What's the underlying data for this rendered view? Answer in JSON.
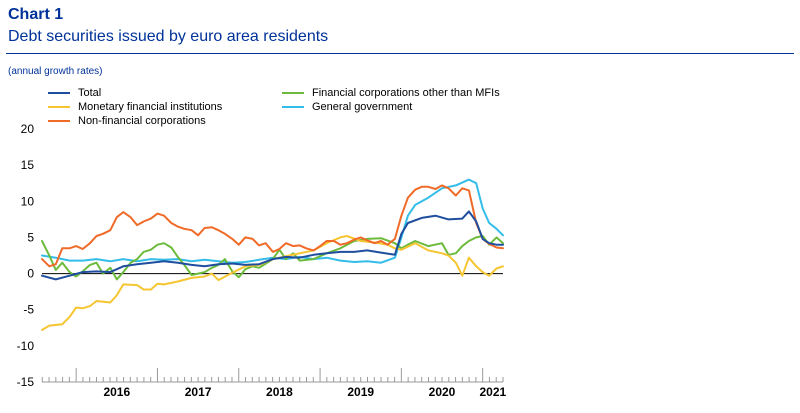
{
  "header": {
    "chart_number": "Chart 1",
    "title": "Debt securities issued by euro area residents",
    "subtitle": "(annual growth rates)"
  },
  "colors": {
    "Total": "#1f4e9e",
    "Monetary financial institutions": "#f6c532",
    "Non-financial corporations": "#f06a28",
    "Financial corporations other than MFIs": "#6dbb3d",
    "General government": "#33bde8"
  },
  "chart_data": {
    "type": "line",
    "x_labels": [
      "2016",
      "2017",
      "2018",
      "2019",
      "2020",
      "2021"
    ],
    "x_start": 2015.58,
    "x_end": 2021.25,
    "ylim": [
      -15,
      20
    ],
    "yticks": [
      20,
      15,
      10,
      5,
      0,
      -5,
      -10,
      -15
    ],
    "legend_position": "top",
    "series": [
      {
        "name": "Total",
        "points": [
          [
            2015.58,
            -0.3
          ],
          [
            2015.75,
            -0.8
          ],
          [
            2015.92,
            -0.3
          ],
          [
            2016.08,
            0.2
          ],
          [
            2016.25,
            0.3
          ],
          [
            2016.42,
            0.2
          ],
          [
            2016.58,
            1.0
          ],
          [
            2016.75,
            1.3
          ],
          [
            2016.92,
            1.5
          ],
          [
            2017.08,
            1.7
          ],
          [
            2017.25,
            1.5
          ],
          [
            2017.42,
            1.2
          ],
          [
            2017.58,
            1.0
          ],
          [
            2017.75,
            1.3
          ],
          [
            2017.92,
            1.4
          ],
          [
            2018.08,
            1.2
          ],
          [
            2018.25,
            1.3
          ],
          [
            2018.42,
            2.0
          ],
          [
            2018.58,
            2.3
          ],
          [
            2018.75,
            2.2
          ],
          [
            2018.92,
            2.6
          ],
          [
            2019.08,
            2.8
          ],
          [
            2019.25,
            3.0
          ],
          [
            2019.42,
            3.0
          ],
          [
            2019.58,
            3.2
          ],
          [
            2019.75,
            2.9
          ],
          [
            2019.92,
            2.6
          ],
          [
            2020.0,
            5.5
          ],
          [
            2020.08,
            7.0
          ],
          [
            2020.25,
            7.7
          ],
          [
            2020.42,
            8.0
          ],
          [
            2020.58,
            7.5
          ],
          [
            2020.75,
            7.6
          ],
          [
            2020.83,
            8.6
          ],
          [
            2020.92,
            7.2
          ],
          [
            2021.0,
            4.8
          ],
          [
            2021.08,
            4.2
          ],
          [
            2021.17,
            4.0
          ],
          [
            2021.25,
            4.0
          ]
        ]
      },
      {
        "name": "Monetary financial institutions",
        "points": [
          [
            2015.58,
            -7.8
          ],
          [
            2015.67,
            -7.2
          ],
          [
            2015.83,
            -7.0
          ],
          [
            2015.92,
            -6.0
          ],
          [
            2016.0,
            -4.7
          ],
          [
            2016.08,
            -4.8
          ],
          [
            2016.17,
            -4.5
          ],
          [
            2016.25,
            -3.8
          ],
          [
            2016.42,
            -4.0
          ],
          [
            2016.5,
            -3.0
          ],
          [
            2016.58,
            -1.5
          ],
          [
            2016.75,
            -1.6
          ],
          [
            2016.83,
            -2.2
          ],
          [
            2016.92,
            -2.2
          ],
          [
            2017.0,
            -1.4
          ],
          [
            2017.08,
            -1.5
          ],
          [
            2017.25,
            -1.1
          ],
          [
            2017.42,
            -0.6
          ],
          [
            2017.58,
            -0.4
          ],
          [
            2017.67,
            0.0
          ],
          [
            2017.75,
            -0.9
          ],
          [
            2017.92,
            0.1
          ],
          [
            2018.08,
            1.0
          ],
          [
            2018.25,
            1.2
          ],
          [
            2018.42,
            2.0
          ],
          [
            2018.58,
            2.4
          ],
          [
            2018.75,
            2.8
          ],
          [
            2018.92,
            3.2
          ],
          [
            2019.08,
            4.2
          ],
          [
            2019.25,
            5.0
          ],
          [
            2019.33,
            5.2
          ],
          [
            2019.5,
            4.5
          ],
          [
            2019.67,
            4.3
          ],
          [
            2019.83,
            4.0
          ],
          [
            2019.92,
            3.5
          ],
          [
            2020.0,
            3.3
          ],
          [
            2020.17,
            4.2
          ],
          [
            2020.33,
            3.2
          ],
          [
            2020.5,
            2.8
          ],
          [
            2020.58,
            2.5
          ],
          [
            2020.67,
            1.5
          ],
          [
            2020.75,
            -0.3
          ],
          [
            2020.83,
            2.2
          ],
          [
            2020.92,
            1.0
          ],
          [
            2021.0,
            0.2
          ],
          [
            2021.08,
            -0.3
          ],
          [
            2021.17,
            0.7
          ],
          [
            2021.25,
            1.0
          ]
        ]
      },
      {
        "name": "Non-financial corporations",
        "points": [
          [
            2015.58,
            2.0
          ],
          [
            2015.67,
            1.0
          ],
          [
            2015.75,
            1.3
          ],
          [
            2015.83,
            3.5
          ],
          [
            2015.92,
            3.5
          ],
          [
            2016.0,
            3.8
          ],
          [
            2016.08,
            3.4
          ],
          [
            2016.17,
            4.2
          ],
          [
            2016.25,
            5.2
          ],
          [
            2016.33,
            5.5
          ],
          [
            2016.42,
            6.0
          ],
          [
            2016.5,
            7.8
          ],
          [
            2016.58,
            8.5
          ],
          [
            2016.67,
            7.8
          ],
          [
            2016.75,
            6.7
          ],
          [
            2016.83,
            7.2
          ],
          [
            2016.92,
            7.6
          ],
          [
            2017.0,
            8.3
          ],
          [
            2017.08,
            8.0
          ],
          [
            2017.17,
            7.0
          ],
          [
            2017.25,
            6.5
          ],
          [
            2017.33,
            6.2
          ],
          [
            2017.42,
            6.0
          ],
          [
            2017.5,
            5.3
          ],
          [
            2017.58,
            6.3
          ],
          [
            2017.67,
            6.4
          ],
          [
            2017.75,
            6.0
          ],
          [
            2017.83,
            5.5
          ],
          [
            2017.92,
            4.8
          ],
          [
            2018.0,
            4.0
          ],
          [
            2018.08,
            5.0
          ],
          [
            2018.17,
            4.8
          ],
          [
            2018.25,
            3.9
          ],
          [
            2018.33,
            4.2
          ],
          [
            2018.42,
            3.0
          ],
          [
            2018.5,
            3.4
          ],
          [
            2018.58,
            4.2
          ],
          [
            2018.67,
            3.8
          ],
          [
            2018.75,
            3.9
          ],
          [
            2018.83,
            3.5
          ],
          [
            2018.92,
            3.2
          ],
          [
            2019.0,
            3.8
          ],
          [
            2019.08,
            4.5
          ],
          [
            2019.17,
            4.5
          ],
          [
            2019.25,
            4.0
          ],
          [
            2019.33,
            4.2
          ],
          [
            2019.42,
            4.7
          ],
          [
            2019.5,
            5.0
          ],
          [
            2019.58,
            4.6
          ],
          [
            2019.67,
            4.2
          ],
          [
            2019.75,
            4.5
          ],
          [
            2019.83,
            4.0
          ],
          [
            2019.92,
            4.8
          ],
          [
            2020.0,
            8.0
          ],
          [
            2020.08,
            10.5
          ],
          [
            2020.17,
            11.6
          ],
          [
            2020.25,
            12.0
          ],
          [
            2020.33,
            12.0
          ],
          [
            2020.42,
            11.7
          ],
          [
            2020.5,
            12.2
          ],
          [
            2020.58,
            11.8
          ],
          [
            2020.67,
            10.8
          ],
          [
            2020.75,
            11.8
          ],
          [
            2020.83,
            11.5
          ],
          [
            2020.92,
            7.0
          ],
          [
            2021.0,
            4.8
          ],
          [
            2021.08,
            4.1
          ],
          [
            2021.17,
            3.6
          ],
          [
            2021.25,
            3.5
          ]
        ]
      },
      {
        "name": "Financial corporations other than MFIs",
        "points": [
          [
            2015.58,
            4.5
          ],
          [
            2015.67,
            2.5
          ],
          [
            2015.75,
            0.5
          ],
          [
            2015.83,
            1.5
          ],
          [
            2015.92,
            0.2
          ],
          [
            2016.0,
            -0.4
          ],
          [
            2016.08,
            0.3
          ],
          [
            2016.17,
            1.2
          ],
          [
            2016.25,
            1.5
          ],
          [
            2016.33,
            0.0
          ],
          [
            2016.42,
            0.8
          ],
          [
            2016.5,
            -0.8
          ],
          [
            2016.58,
            0.2
          ],
          [
            2016.67,
            1.5
          ],
          [
            2016.75,
            2.0
          ],
          [
            2016.83,
            3.0
          ],
          [
            2016.92,
            3.3
          ],
          [
            2017.0,
            4.0
          ],
          [
            2017.08,
            4.2
          ],
          [
            2017.17,
            3.6
          ],
          [
            2017.25,
            2.3
          ],
          [
            2017.33,
            1.2
          ],
          [
            2017.42,
            -0.2
          ],
          [
            2017.5,
            0.0
          ],
          [
            2017.58,
            0.2
          ],
          [
            2017.67,
            0.8
          ],
          [
            2017.75,
            1.2
          ],
          [
            2017.83,
            2.0
          ],
          [
            2017.92,
            0.3
          ],
          [
            2018.0,
            -0.5
          ],
          [
            2018.08,
            0.6
          ],
          [
            2018.17,
            1.0
          ],
          [
            2018.25,
            0.8
          ],
          [
            2018.42,
            2.0
          ],
          [
            2018.5,
            3.3
          ],
          [
            2018.58,
            2.0
          ],
          [
            2018.67,
            2.8
          ],
          [
            2018.75,
            1.8
          ],
          [
            2018.92,
            2.0
          ],
          [
            2019.08,
            2.8
          ],
          [
            2019.25,
            3.5
          ],
          [
            2019.42,
            4.5
          ],
          [
            2019.58,
            4.8
          ],
          [
            2019.75,
            4.9
          ],
          [
            2019.92,
            4.2
          ],
          [
            2020.0,
            3.5
          ],
          [
            2020.08,
            4.0
          ],
          [
            2020.17,
            4.5
          ],
          [
            2020.33,
            3.8
          ],
          [
            2020.5,
            4.2
          ],
          [
            2020.58,
            2.6
          ],
          [
            2020.67,
            2.8
          ],
          [
            2020.75,
            3.8
          ],
          [
            2020.83,
            4.5
          ],
          [
            2020.92,
            5.0
          ],
          [
            2021.0,
            5.2
          ],
          [
            2021.08,
            4.0
          ],
          [
            2021.17,
            5.0
          ],
          [
            2021.25,
            4.2
          ]
        ]
      },
      {
        "name": "General government",
        "points": [
          [
            2015.58,
            2.5
          ],
          [
            2015.75,
            2.2
          ],
          [
            2015.92,
            1.8
          ],
          [
            2016.08,
            1.8
          ],
          [
            2016.25,
            2.0
          ],
          [
            2016.42,
            1.7
          ],
          [
            2016.58,
            2.0
          ],
          [
            2016.75,
            1.7
          ],
          [
            2016.92,
            2.0
          ],
          [
            2017.08,
            1.9
          ],
          [
            2017.25,
            2.0
          ],
          [
            2017.42,
            1.7
          ],
          [
            2017.58,
            1.9
          ],
          [
            2017.75,
            1.7
          ],
          [
            2017.92,
            1.5
          ],
          [
            2018.08,
            1.6
          ],
          [
            2018.25,
            1.9
          ],
          [
            2018.42,
            2.2
          ],
          [
            2018.58,
            2.0
          ],
          [
            2018.75,
            2.3
          ],
          [
            2018.92,
            2.0
          ],
          [
            2019.08,
            2.2
          ],
          [
            2019.25,
            1.8
          ],
          [
            2019.42,
            1.6
          ],
          [
            2019.58,
            1.7
          ],
          [
            2019.75,
            1.5
          ],
          [
            2019.92,
            2.2
          ],
          [
            2020.0,
            5.0
          ],
          [
            2020.08,
            8.0
          ],
          [
            2020.17,
            9.5
          ],
          [
            2020.33,
            10.5
          ],
          [
            2020.5,
            11.8
          ],
          [
            2020.67,
            12.2
          ],
          [
            2020.83,
            13.0
          ],
          [
            2020.92,
            12.5
          ],
          [
            2021.0,
            9.0
          ],
          [
            2021.08,
            7.0
          ],
          [
            2021.17,
            6.2
          ],
          [
            2021.25,
            5.3
          ]
        ]
      }
    ]
  }
}
